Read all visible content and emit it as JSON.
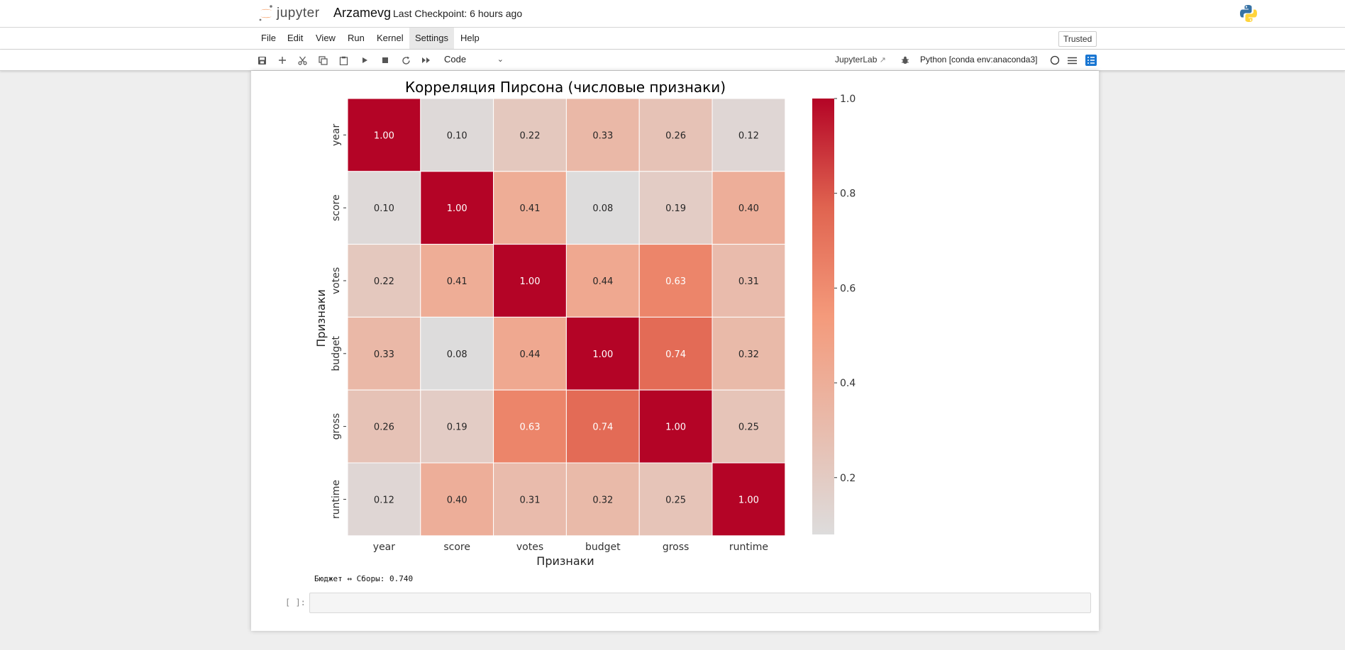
{
  "header": {
    "logo_text": "jupyter",
    "notebook_name": "Arzamevg",
    "checkpoint": "Last Checkpoint: 6 hours ago",
    "trusted": "Trusted"
  },
  "menu": {
    "items": [
      "File",
      "Edit",
      "View",
      "Run",
      "Kernel",
      "Settings",
      "Help"
    ]
  },
  "toolbar": {
    "cell_type": "Code",
    "jupyterlab_link": "JupyterLab",
    "kernel": "Python [conda env:anaconda3]",
    "icons": [
      "save-icon",
      "add-cell-icon",
      "cut-icon",
      "copy-icon",
      "paste-icon",
      "run-icon",
      "stop-icon",
      "restart-icon",
      "fast-forward-icon",
      "debug-icon",
      "kernel-status-icon",
      "menu-icon",
      "toc-icon"
    ]
  },
  "chart_data": {
    "type": "heatmap",
    "title": "Корреляция Пирсона (числовые признаки)",
    "xlabel": "Признаки",
    "ylabel": "Признаки",
    "x_categories": [
      "year",
      "score",
      "votes",
      "budget",
      "gross",
      "runtime"
    ],
    "y_categories": [
      "year",
      "score",
      "votes",
      "budget",
      "gross",
      "runtime"
    ],
    "values": [
      [
        1.0,
        0.1,
        0.22,
        0.33,
        0.26,
        0.12
      ],
      [
        0.1,
        1.0,
        0.41,
        0.08,
        0.19,
        0.4
      ],
      [
        0.22,
        0.41,
        1.0,
        0.44,
        0.63,
        0.31
      ],
      [
        0.33,
        0.08,
        0.44,
        1.0,
        0.74,
        0.32
      ],
      [
        0.26,
        0.19,
        0.63,
        0.74,
        1.0,
        0.25
      ],
      [
        0.12,
        0.4,
        0.31,
        0.32,
        0.25,
        1.0
      ]
    ],
    "colormap": "coolwarm (upper half)",
    "colorbar_range": [
      0.08,
      1.0
    ],
    "colorbar_ticks": [
      "1.0",
      "0.8",
      "0.6",
      "0.4",
      "0.2"
    ],
    "colorbar_tick_values": [
      1.0,
      0.8,
      0.6,
      0.4,
      0.2
    ],
    "annotation_format": "0.00"
  },
  "output": {
    "stdout": "Бюджет ↔ Сборы: 0.740"
  },
  "next_cell": {
    "prompt": "[ ]:"
  }
}
